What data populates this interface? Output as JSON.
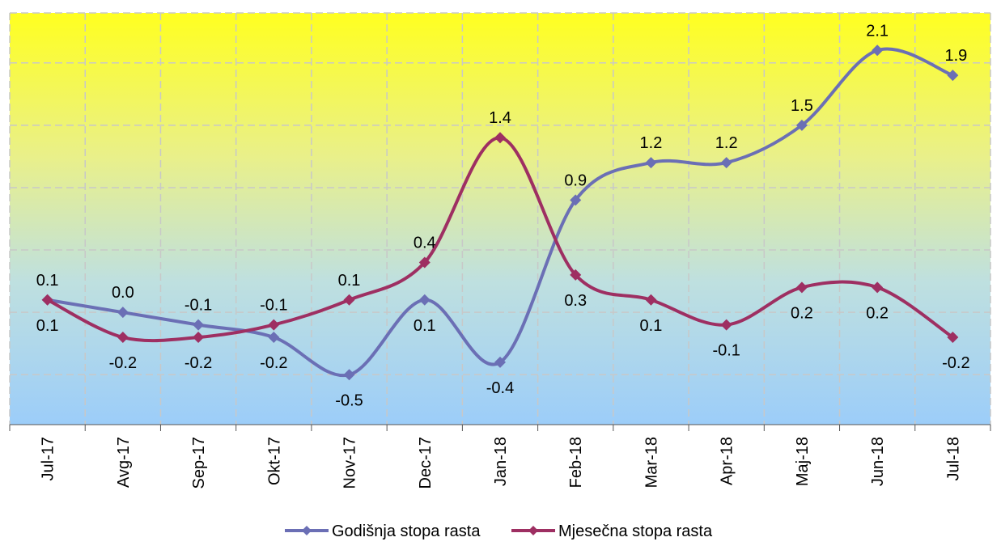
{
  "chart_data": {
    "type": "line",
    "categories": [
      "Jul-17",
      "Avg-17",
      "Sep-17",
      "Okt-17",
      "Nov-17",
      "Dec-17",
      "Jan-18",
      "Feb-18",
      "Mar-18",
      "Apr-18",
      "Maj-18",
      "Jun-18",
      "Jul-18"
    ],
    "series": [
      {
        "name": "Godišnja stopa rasta",
        "color": "#6b6fb5",
        "values": [
          0.1,
          0.0,
          -0.1,
          -0.2,
          -0.5,
          0.1,
          -0.4,
          0.9,
          1.2,
          1.2,
          1.5,
          2.1,
          1.9
        ],
        "labels": [
          "0.1",
          "0.0",
          "-0.1",
          "-0.2",
          "-0.5",
          "0.1",
          "-0.4",
          "0.9",
          "1.2",
          "1.2",
          "1.5",
          "2.1",
          "1.9"
        ]
      },
      {
        "name": "Mjesečna stopa rasta",
        "color": "#9e2f62",
        "values": [
          0.1,
          -0.2,
          -0.2,
          -0.1,
          0.1,
          0.4,
          1.4,
          0.3,
          0.1,
          -0.1,
          0.2,
          0.2,
          -0.2
        ],
        "labels": [
          "0.1",
          "-0.2",
          "-0.2",
          "-0.1",
          "0.1",
          "0.4",
          "1.4",
          "0.3",
          "0.1",
          "-0.1",
          "0.2",
          "0.2",
          "-0.2"
        ]
      }
    ],
    "ylim": [
      -0.9,
      2.4
    ],
    "grid": true,
    "legend_position": "bottom",
    "background_gradient": [
      "#ffff20",
      "#e9f08a",
      "#bfe0df",
      "#9ccdf9"
    ],
    "xlabel": "",
    "ylabel": "",
    "title": ""
  }
}
